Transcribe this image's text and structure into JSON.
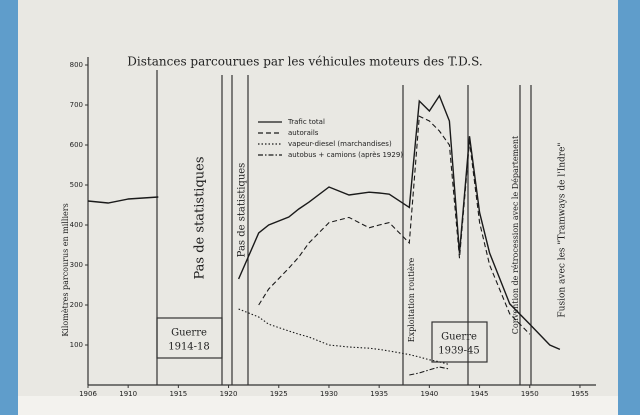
{
  "chart_data": {
    "type": "line",
    "title": "Distances parcourues par les véhicules moteurs des T.D.S.",
    "y_label": "Kilomètres parcourus en milliers",
    "x": [
      1906,
      1908,
      1910,
      1913,
      1914,
      1921,
      1923,
      1924,
      1926,
      1927,
      1928,
      1930,
      1932,
      1934,
      1935,
      1936,
      1938,
      1939,
      1940,
      1941,
      1942,
      1943,
      1944,
      1945,
      1946,
      1948,
      1950,
      1952,
      1953
    ],
    "series": [
      {
        "name": "Trafic total",
        "color": "#1a1a1a",
        "values": [
          460,
          455,
          465,
          470,
          null,
          265,
          380,
          400,
          420,
          440,
          457,
          495,
          475,
          482,
          480,
          477,
          444,
          710,
          685,
          723,
          660,
          330,
          622,
          431,
          330,
          203,
          152,
          100,
          89
        ]
      },
      {
        "name": "autorails",
        "color": "#1a1a1a",
        "values": [
          null,
          null,
          null,
          null,
          null,
          null,
          200,
          240,
          292,
          320,
          355,
          406,
          419,
          393,
          400,
          406,
          355,
          672,
          660,
          635,
          600,
          317,
          609,
          406,
          300,
          178,
          127,
          null,
          null
        ]
      },
      {
        "name": "vapeur-diesel (marchandises)",
        "color": "#1a1a1a",
        "values": [
          null,
          null,
          null,
          null,
          null,
          190,
          170,
          152,
          135,
          127,
          120,
          100,
          95,
          92,
          89,
          85,
          76,
          70,
          63,
          58,
          51,
          null,
          null,
          null,
          null,
          null,
          null,
          null,
          null
        ]
      },
      {
        "name": "autobus + camions (après 1929)",
        "color": "#1a1a1a",
        "values": [
          null,
          null,
          null,
          null,
          null,
          null,
          null,
          null,
          null,
          null,
          null,
          null,
          null,
          null,
          null,
          null,
          25,
          30,
          38,
          45,
          40,
          null,
          null,
          null,
          null,
          null,
          null,
          null,
          null
        ]
      }
    ],
    "xlim": [
      1906,
      1956
    ],
    "xticks": [
      1906,
      1910,
      1915,
      1920,
      1925,
      1930,
      1935,
      1940,
      1945,
      1950,
      1955
    ],
    "ylim": [
      0,
      800
    ],
    "yticks": [
      100,
      200,
      300,
      400,
      500,
      600,
      700,
      800
    ],
    "annotations": [
      "Pas de statistiques",
      "Pas de statistiques",
      "Guerre",
      "1914-18",
      "Guerre",
      "1939-45",
      "Exploitation routière",
      "Convention de rétrocession avec le Département",
      "Fusion avec les \"Tramways de l'Indre\""
    ]
  }
}
